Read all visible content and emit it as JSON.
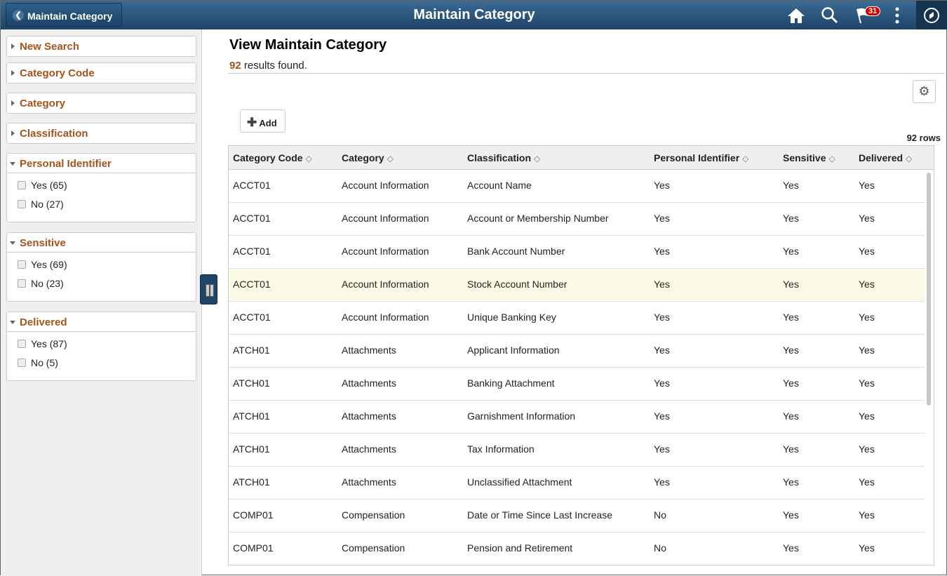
{
  "header": {
    "back_label": "Maintain Category",
    "title": "Maintain Category",
    "notification_count": "31"
  },
  "sidebar": {
    "collapsed": [
      {
        "label": "New Search"
      },
      {
        "label": "Category Code"
      },
      {
        "label": "Category"
      },
      {
        "label": "Classification"
      }
    ],
    "facets": [
      {
        "label": "Personal Identifier",
        "options": [
          {
            "label": "Yes (65)"
          },
          {
            "label": "No (27)"
          }
        ]
      },
      {
        "label": "Sensitive",
        "options": [
          {
            "label": "Yes (69)"
          },
          {
            "label": "No (23)"
          }
        ]
      },
      {
        "label": "Delivered",
        "options": [
          {
            "label": "Yes (87)"
          },
          {
            "label": "No (5)"
          }
        ]
      }
    ]
  },
  "main": {
    "title": "View Maintain Category",
    "result_count": "92",
    "result_text": " results found.",
    "add_label": "Add",
    "rows_label": "92 rows"
  },
  "table": {
    "columns": [
      "Category Code",
      "Category",
      "Classification",
      "Personal Identifier",
      "Sensitive",
      "Delivered"
    ],
    "highlighted_row": 3,
    "rows": [
      [
        "ACCT01",
        "Account Information",
        "Account Name",
        "Yes",
        "Yes",
        "Yes"
      ],
      [
        "ACCT01",
        "Account Information",
        "Account or Membership Number",
        "Yes",
        "Yes",
        "Yes"
      ],
      [
        "ACCT01",
        "Account Information",
        "Bank Account Number",
        "Yes",
        "Yes",
        "Yes"
      ],
      [
        "ACCT01",
        "Account Information",
        "Stock Account Number",
        "Yes",
        "Yes",
        "Yes"
      ],
      [
        "ACCT01",
        "Account Information",
        "Unique Banking Key",
        "Yes",
        "Yes",
        "Yes"
      ],
      [
        "ATCH01",
        "Attachments",
        "Applicant Information",
        "Yes",
        "Yes",
        "Yes"
      ],
      [
        "ATCH01",
        "Attachments",
        "Banking Attachment",
        "Yes",
        "Yes",
        "Yes"
      ],
      [
        "ATCH01",
        "Attachments",
        "Garnishment Information",
        "Yes",
        "Yes",
        "Yes"
      ],
      [
        "ATCH01",
        "Attachments",
        "Tax Information",
        "Yes",
        "Yes",
        "Yes"
      ],
      [
        "ATCH01",
        "Attachments",
        "Unclassified Attachment",
        "Yes",
        "Yes",
        "Yes"
      ],
      [
        "COMP01",
        "Compensation",
        "Date or Time Since Last Increase",
        "No",
        "Yes",
        "Yes"
      ],
      [
        "COMP01",
        "Compensation",
        "Pension and Retirement",
        "No",
        "Yes",
        "Yes"
      ]
    ]
  }
}
